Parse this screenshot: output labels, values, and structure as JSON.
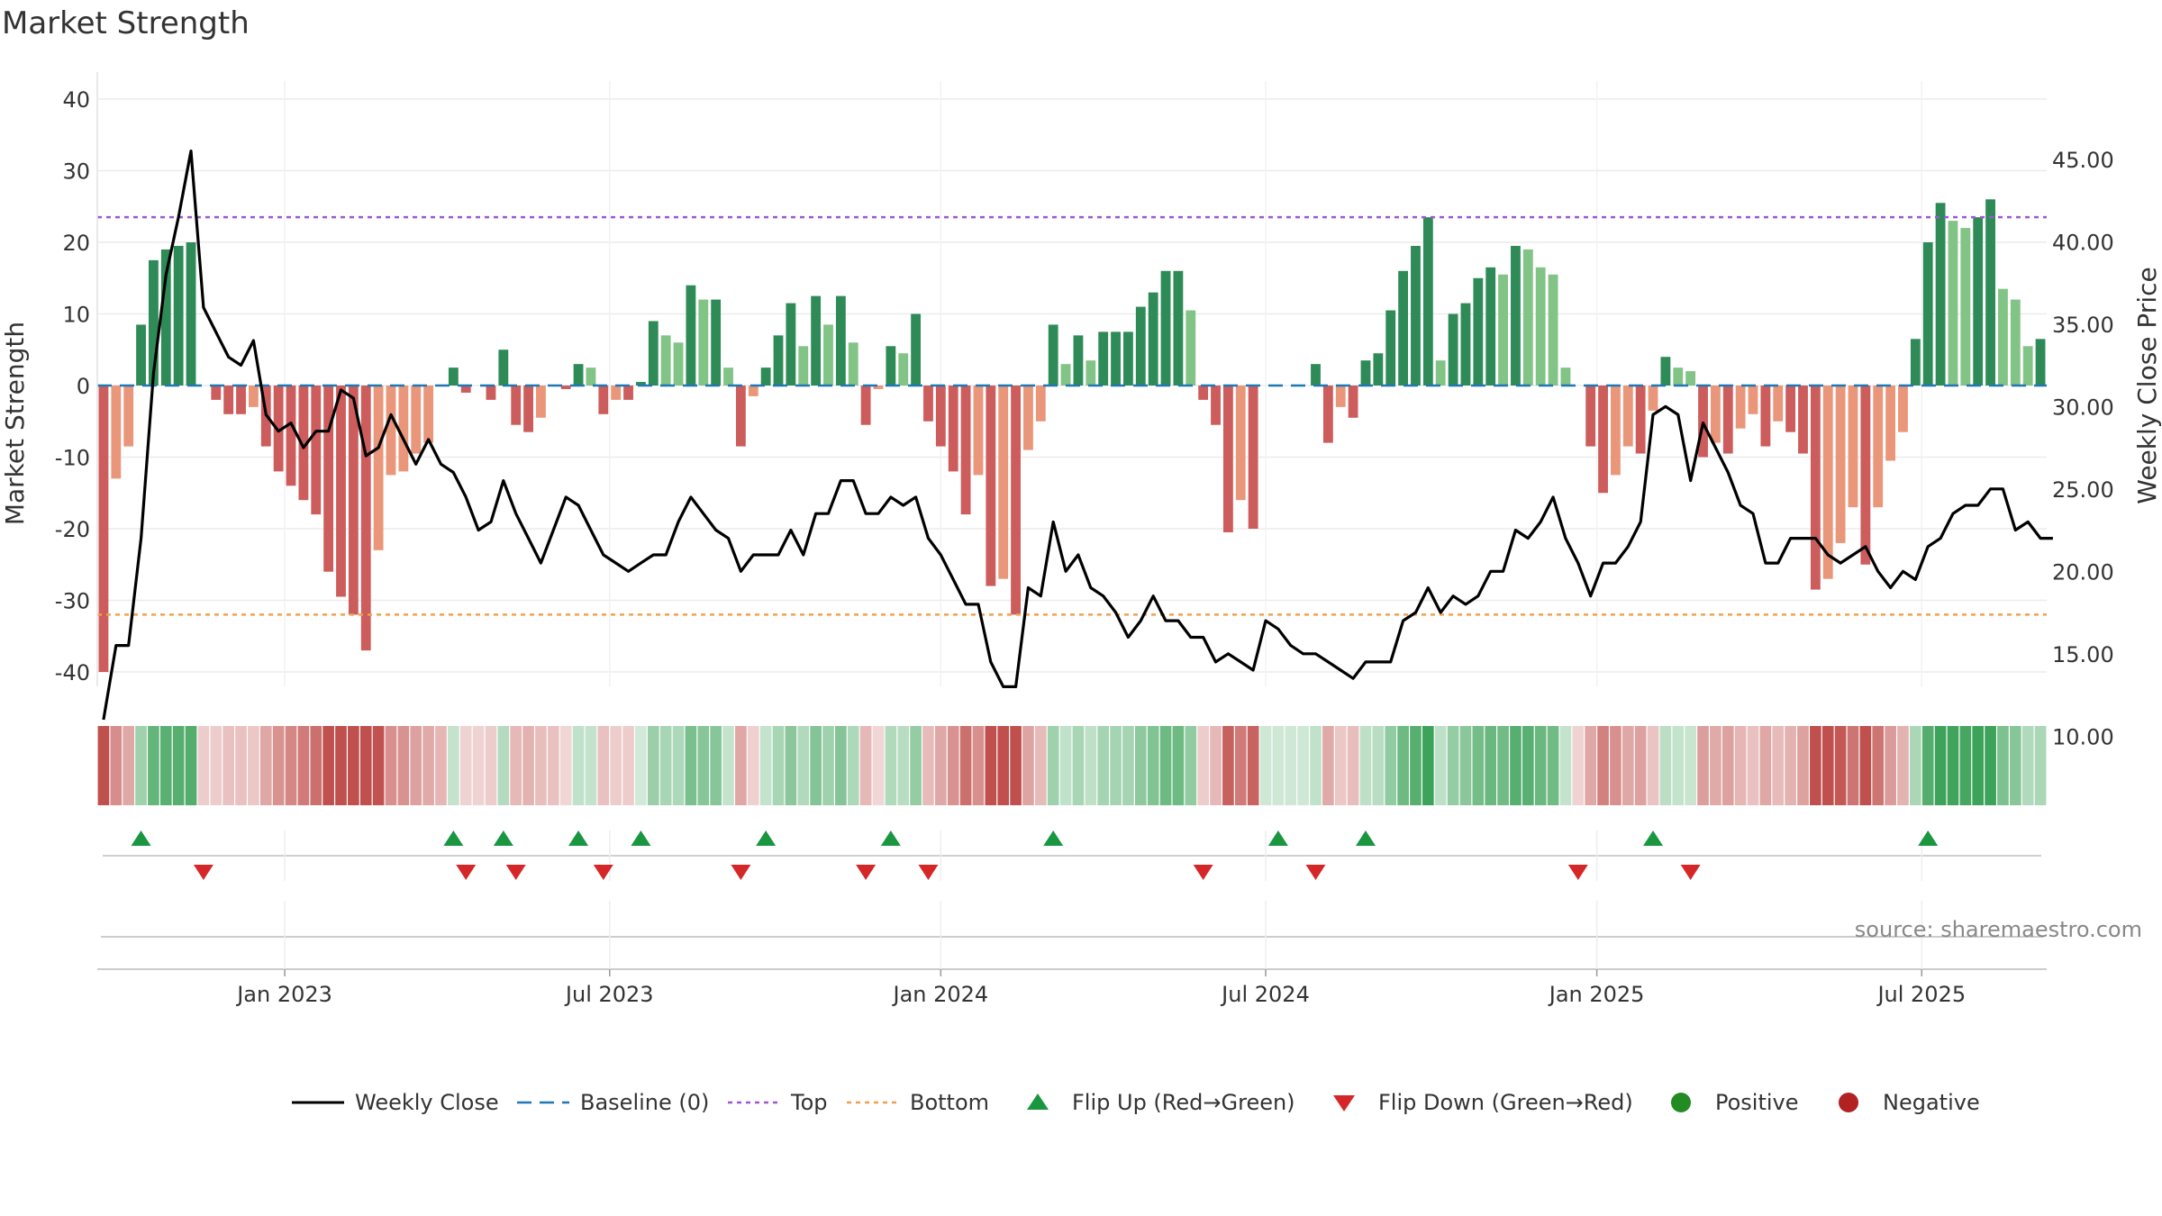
{
  "chart_data": {
    "type": "bar",
    "title": "Market Strength",
    "source": "source: sharemaestro.com",
    "left_axis": {
      "label": "Market Strength",
      "range": [
        -40,
        40
      ],
      "ticks": [
        40,
        30,
        20,
        10,
        0,
        -10,
        -20,
        -30,
        -40
      ]
    },
    "right_axis": {
      "label": "Weekly Close Price",
      "range": [
        10,
        45
      ],
      "ticks": [
        "45.00",
        "40.00",
        "35.00",
        "30.00",
        "25.00",
        "20.00",
        "15.00",
        "10.00"
      ]
    },
    "x_ticks": [
      {
        "label": "Jan 2023",
        "week": 15
      },
      {
        "label": "Jul 2023",
        "week": 41
      },
      {
        "label": "Jan 2024",
        "week": 67.5
      },
      {
        "label": "Jul 2024",
        "week": 93.5
      },
      {
        "label": "Jan 2025",
        "week": 120
      },
      {
        "label": "Jul 2025",
        "week": 146
      }
    ],
    "top_level": 23.5,
    "bottom_level": -32,
    "baseline": 0,
    "strength": [
      -40,
      -13,
      -8.5,
      8.5,
      17.5,
      19,
      19.5,
      20,
      0,
      -2,
      -4,
      -4,
      -3,
      -8.5,
      -12,
      -14,
      -16,
      -18,
      -26,
      -29.5,
      -32,
      -37,
      -23,
      -12.5,
      -12,
      -9.5,
      -8,
      0,
      2.5,
      -1,
      0,
      -2,
      5,
      -5.5,
      -6.5,
      -4.5,
      0,
      -0.5,
      3,
      2.5,
      -4,
      -2,
      -2,
      0.5,
      9,
      7,
      6,
      14,
      12,
      12,
      2.5,
      -8.5,
      -1.5,
      2.5,
      7,
      11.5,
      5.5,
      12.5,
      8.5,
      12.5,
      6,
      -5.5,
      -0.5,
      5.5,
      4.5,
      10,
      -5,
      -8.5,
      -12,
      -18,
      -12.5,
      -28,
      -27,
      -32,
      -9,
      -5,
      8.5,
      3,
      7,
      3.5,
      7.5,
      7.5,
      7.5,
      11,
      13,
      16,
      16,
      10.5,
      -2,
      -5.5,
      -20.5,
      -16,
      -20,
      0,
      0,
      0,
      0,
      3,
      -8,
      -3,
      -4.5,
      3.5,
      4.5,
      10.5,
      16,
      19.5,
      23.5,
      3.5,
      10,
      11.5,
      15,
      16.5,
      15.5,
      19.5,
      19,
      16.5,
      15.5,
      2.5,
      0,
      -8.5,
      -15,
      -12.5,
      -8.5,
      -9.5,
      -3.5,
      4,
      2.5,
      2,
      -10,
      -8,
      -9.5,
      -6,
      -4,
      -8.5,
      -5,
      -6.5,
      -9.5,
      -28.5,
      -27,
      -22,
      -17,
      -25,
      -17,
      -10.5,
      -6.5,
      6.5,
      20,
      25.5,
      23,
      22,
      23.5,
      26,
      13.5,
      12,
      5.5,
      6.5
    ],
    "weekly_close": [
      11,
      15.5,
      15.5,
      22,
      32,
      38,
      41.5,
      45.5,
      36,
      34.5,
      33,
      32.5,
      34,
      29.5,
      28.5,
      29,
      27.5,
      28.5,
      28.5,
      31,
      30.5,
      27,
      27.5,
      29.5,
      28,
      26.5,
      28,
      26.5,
      26,
      24.5,
      22.5,
      23,
      25.5,
      23.5,
      22,
      20.5,
      22.5,
      24.5,
      24,
      22.5,
      21,
      20.5,
      20,
      20.5,
      21,
      21,
      23,
      24.5,
      23.5,
      22.5,
      22,
      20,
      21,
      21,
      21,
      22.5,
      21,
      23.5,
      23.5,
      25.5,
      25.5,
      23.5,
      23.5,
      24.5,
      24,
      24.5,
      22,
      21,
      19.5,
      18,
      18,
      14.5,
      13,
      13,
      19,
      18.5,
      23,
      20,
      21,
      19,
      18.5,
      17.5,
      16,
      17,
      18.5,
      17,
      17,
      16,
      16,
      14.5,
      15,
      14.5,
      14,
      17,
      16.5,
      15.5,
      15,
      15,
      14.5,
      14,
      13.5,
      14.5,
      14.5,
      14.5,
      17,
      17.5,
      19,
      17.5,
      18.5,
      18,
      18.5,
      20,
      20,
      22.5,
      22,
      23,
      24.5,
      22,
      20.5,
      18.5,
      20.5,
      20.5,
      21.5,
      23,
      29.5,
      30,
      29.5,
      25.5,
      29,
      27.5,
      26,
      24,
      23.5,
      20.5,
      20.5,
      22,
      22,
      22,
      21,
      20.5,
      21,
      21.5,
      20,
      19,
      20,
      19.5,
      21.5,
      22,
      23.5,
      24,
      24,
      25,
      25,
      22.5,
      23,
      22,
      22
    ],
    "heat_strip": [
      -40,
      -13,
      -8.5,
      8.5,
      17.5,
      19,
      19.5,
      20,
      -2,
      -2,
      -4,
      -4,
      -3,
      -8.5,
      -12,
      -14,
      -16,
      -18,
      -26,
      -29.5,
      -32,
      -37,
      -23,
      -12.5,
      -12,
      -9.5,
      -8,
      -6,
      2.5,
      -1,
      -1,
      -2,
      5,
      -5.5,
      -6.5,
      -4.5,
      -4,
      -0.5,
      3,
      2.5,
      -4,
      -2,
      -2,
      0.5,
      9,
      7,
      6,
      14,
      12,
      12,
      2.5,
      -8.5,
      -1.5,
      2.5,
      7,
      11.5,
      5.5,
      12.5,
      8.5,
      12.5,
      6,
      -5.5,
      -0.5,
      5.5,
      4.5,
      10,
      -5,
      -8.5,
      -12,
      -18,
      -12.5,
      -28,
      -27,
      -32,
      -9,
      -5,
      8.5,
      3,
      7,
      3.5,
      7.5,
      7.5,
      7.5,
      11,
      13,
      16,
      16,
      10.5,
      -2,
      -5.5,
      -20.5,
      -16,
      -20,
      1,
      1,
      1,
      1,
      3,
      -8,
      -3,
      -4.5,
      3.5,
      4.5,
      10.5,
      16,
      19.5,
      23.5,
      3.5,
      10,
      11.5,
      15,
      16.5,
      15.5,
      19.5,
      19,
      16.5,
      15.5,
      2.5,
      -1,
      -8.5,
      -15,
      -12.5,
      -8.5,
      -9.5,
      -3.5,
      4,
      2.5,
      2,
      -10,
      -8,
      -9.5,
      -6,
      -4,
      -8.5,
      -5,
      -6.5,
      -9.5,
      -28.5,
      -27,
      -22,
      -17,
      -25,
      -17,
      -10.5,
      -6.5,
      6.5,
      20,
      25.5,
      23,
      22,
      23.5,
      26,
      13.5,
      12,
      5.5,
      6.5
    ],
    "flip_up_weeks": [
      3,
      28,
      32,
      38,
      43,
      53,
      63,
      76,
      94,
      101,
      124,
      146
    ],
    "flip_down_weeks": [
      8,
      29,
      33,
      40,
      51,
      61,
      66,
      88,
      97,
      118,
      127
    ],
    "colors": {
      "positive_strong": "#2e8b57",
      "positive_weak": "#82c386",
      "negative_strong": "#cd5c5c",
      "negative_weak": "#e9967a",
      "top_line": "#9b59d0",
      "bottom_line": "#f0a050",
      "baseline": "#1f77b4",
      "flip_up": "#1a9641",
      "flip_down": "#d62728",
      "positive_dot": "#228b22",
      "negative_dot": "#b22222",
      "close_line": "#000000"
    },
    "legend": [
      {
        "key": "close",
        "label": "Weekly Close"
      },
      {
        "key": "baseline",
        "label": "Baseline (0)"
      },
      {
        "key": "top",
        "label": "Top"
      },
      {
        "key": "bottom",
        "label": "Bottom"
      },
      {
        "key": "flip_up",
        "label": "Flip Up (Red→Green)"
      },
      {
        "key": "flip_down",
        "label": "Flip Down (Green→Red)"
      },
      {
        "key": "positive",
        "label": "Positive"
      },
      {
        "key": "negative",
        "label": "Negative"
      }
    ]
  }
}
